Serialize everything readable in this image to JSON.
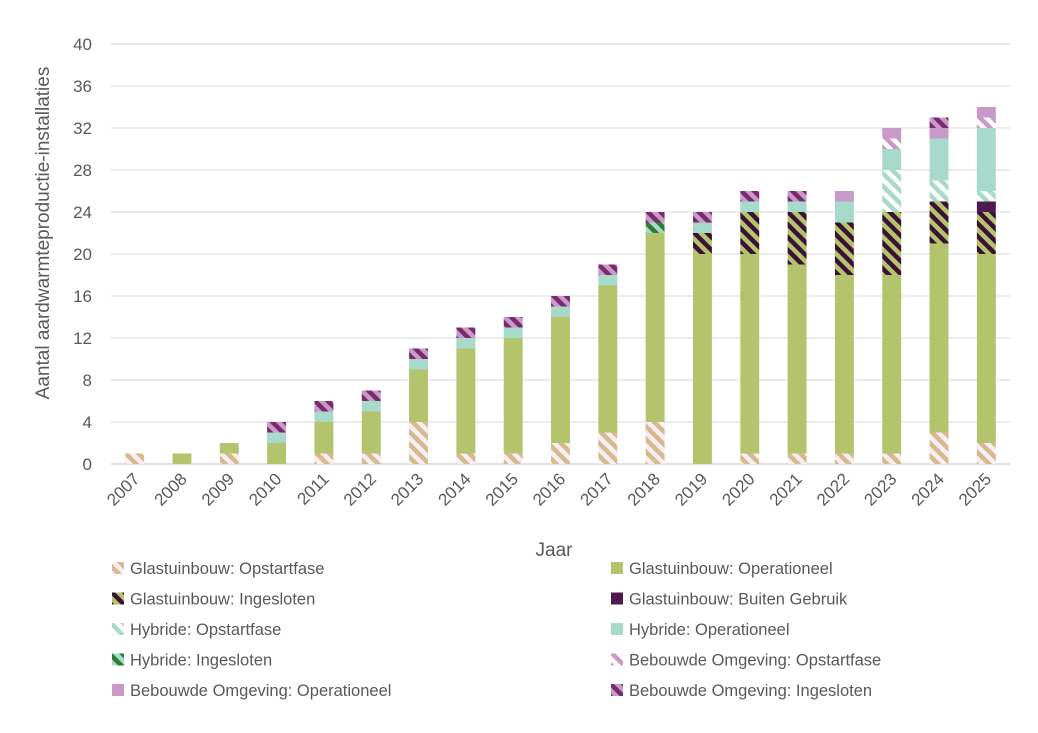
{
  "chart_data": {
    "type": "bar",
    "stacked": true,
    "xlabel": "Jaar",
    "ylabel": "Aantal aardwarmteproductie-installaties",
    "ylim": [
      0,
      40
    ],
    "yticks": [
      0,
      4,
      8,
      12,
      16,
      20,
      24,
      28,
      32,
      36,
      40
    ],
    "grid": true,
    "legend_position": "bottom",
    "categories": [
      "2007",
      "2008",
      "2009",
      "2010",
      "2011",
      "2012",
      "2013",
      "2014",
      "2015",
      "2016",
      "2017",
      "2018",
      "2019",
      "2020",
      "2021",
      "2022",
      "2023",
      "2024",
      "2025"
    ],
    "series": [
      {
        "name": "Glastuinbouw: Opstartfase",
        "color": "#b3c46d",
        "pattern": "stripe-light",
        "values": [
          1,
          0,
          1,
          0,
          1,
          1,
          4,
          1,
          1,
          2,
          3,
          4,
          0,
          1,
          1,
          1,
          1,
          3,
          2
        ]
      },
      {
        "name": "Glastuinbouw: Operationeel",
        "color": "#b3c46d",
        "pattern": "solid",
        "values": [
          0,
          1,
          1,
          2,
          3,
          4,
          5,
          10,
          11,
          12,
          14,
          18,
          20,
          19,
          18,
          17,
          17,
          18,
          18
        ]
      },
      {
        "name": "Glastuinbouw: Ingesloten",
        "color": "#b3c46d",
        "pattern": "stripe-dark",
        "values": [
          0,
          0,
          0,
          0,
          0,
          0,
          0,
          0,
          0,
          0,
          0,
          0,
          2,
          4,
          5,
          5,
          6,
          4,
          4
        ]
      },
      {
        "name": "Glastuinbouw: Buiten Gebruik",
        "color": "#4e1a4f",
        "pattern": "solid",
        "values": [
          0,
          0,
          0,
          0,
          0,
          0,
          0,
          0,
          0,
          0,
          0,
          0,
          0,
          0,
          0,
          0,
          0,
          0,
          1
        ]
      },
      {
        "name": "Hybride: Opstartfase",
        "color": "#a8dacb",
        "pattern": "stripe-light",
        "values": [
          0,
          0,
          0,
          0,
          0,
          0,
          0,
          0,
          0,
          0,
          0,
          0,
          0,
          0,
          0,
          0,
          4,
          2,
          1
        ]
      },
      {
        "name": "Hybride: Operationeel",
        "color": "#a8dacb",
        "pattern": "solid",
        "values": [
          0,
          0,
          0,
          1,
          1,
          1,
          1,
          1,
          1,
          1,
          1,
          0,
          1,
          1,
          1,
          2,
          2,
          4,
          6
        ]
      },
      {
        "name": "Hybride: Ingesloten",
        "color": "#a8dacb",
        "pattern": "stripe-green",
        "values": [
          0,
          0,
          0,
          0,
          0,
          0,
          0,
          0,
          0,
          0,
          0,
          1,
          0,
          0,
          0,
          0,
          0,
          0,
          0
        ]
      },
      {
        "name": "Bebouwde Omgeving: Opstartfase",
        "color": "#c99ac8",
        "pattern": "stripe-light",
        "values": [
          0,
          0,
          0,
          0,
          0,
          0,
          0,
          0,
          0,
          0,
          0,
          0,
          0,
          0,
          0,
          0,
          1,
          0,
          1
        ]
      },
      {
        "name": "Bebouwde Omgeving: Operationeel",
        "color": "#c99ac8",
        "pattern": "solid",
        "values": [
          0,
          0,
          0,
          0,
          0,
          0,
          0,
          0,
          0,
          0,
          0,
          0,
          0,
          0,
          0,
          1,
          1,
          1,
          1
        ]
      },
      {
        "name": "Bebouwde Omgeving: Ingesloten",
        "color": "#c99ac8",
        "pattern": "stripe-purple",
        "values": [
          0,
          0,
          0,
          1,
          1,
          1,
          1,
          1,
          1,
          1,
          1,
          1,
          1,
          1,
          1,
          0,
          0,
          1,
          0
        ]
      }
    ]
  }
}
